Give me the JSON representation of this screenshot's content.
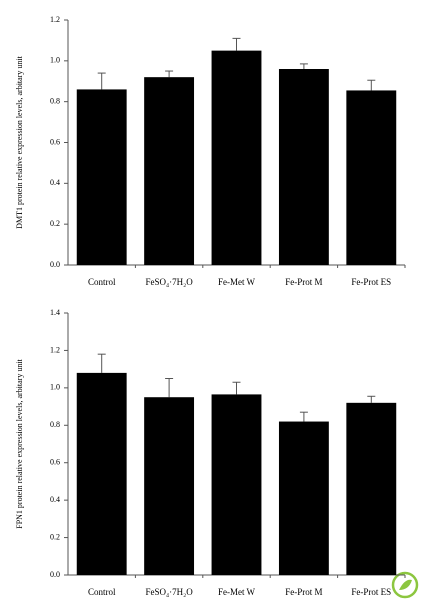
{
  "chart_data": [
    {
      "type": "bar",
      "y_label": "DMT1 protein relative expression levels, arbitary unit",
      "categories": [
        "Control",
        "FeSO₄·7H₂O",
        "Fe-Met W",
        "Fe-Prot M",
        "Fe-Prot ES"
      ],
      "values": [
        0.86,
        0.92,
        1.05,
        0.96,
        0.855
      ],
      "errors": [
        0.08,
        0.03,
        0.06,
        0.025,
        0.05
      ],
      "color": "#000000",
      "ylim": [
        0,
        1.2
      ],
      "yticks": [
        {
          "value": 0,
          "label": "0.0"
        },
        0.2,
        0.4,
        0.6,
        0.8,
        {
          "value": 1,
          "label": "1.0"
        },
        1.2
      ]
    },
    {
      "type": "bar",
      "y_label": "FPN1 protein relative expression levels, arbitary unit",
      "categories": [
        "Control",
        "FeSO₄·7H₂O",
        "Fe-Met W",
        "Fe-Prot M",
        "Fe-Prot ES"
      ],
      "values": [
        1.08,
        0.95,
        0.965,
        0.82,
        0.92
      ],
      "errors": [
        0.1,
        0.1,
        0.065,
        0.05,
        0.035
      ],
      "color": "#000000",
      "ylim": [
        0,
        1.4
      ],
      "yticks": [
        {
          "value": 0,
          "label": "0.0"
        },
        0.2,
        0.4,
        0.6,
        0.8,
        {
          "value": 1,
          "label": "1.0"
        },
        1.2,
        1.4
      ]
    }
  ]
}
